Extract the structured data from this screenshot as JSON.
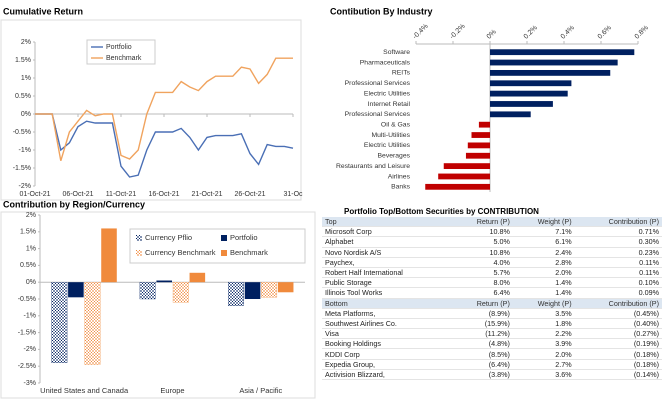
{
  "chart_data": [
    {
      "type": "line",
      "title": "Cumulative Return",
      "x": [
        1,
        2,
        3,
        4,
        5,
        6,
        7,
        8,
        9,
        10,
        11,
        12,
        13,
        14,
        15,
        16,
        17,
        18,
        19,
        20,
        21,
        22,
        23,
        24,
        25,
        26,
        27,
        28,
        29,
        30,
        31
      ],
      "xlim": [
        1,
        31
      ],
      "xticks": [
        {
          "value": 1,
          "label": "01-Oct-21"
        },
        {
          "value": 6,
          "label": "06-Oct-21"
        },
        {
          "value": 11,
          "label": "11-Oct-21"
        },
        {
          "value": 16,
          "label": "16-Oct-21"
        },
        {
          "value": 21,
          "label": "21-Oct-21"
        },
        {
          "value": 26,
          "label": "26-Oct-21"
        },
        {
          "value": 31,
          "label": "31-Oc"
        }
      ],
      "ylim": [
        -2,
        2
      ],
      "yticks": [
        {
          "value": 2,
          "label": "2%"
        },
        {
          "value": 1.5,
          "label": "1.5%"
        },
        {
          "value": 1,
          "label": "1%"
        },
        {
          "value": 0.5,
          "label": "0.5%"
        },
        {
          "value": 0,
          "label": "0%"
        },
        {
          "value": -0.5,
          "label": "-0.5%"
        },
        {
          "value": -1,
          "label": "-1%"
        },
        {
          "value": -1.5,
          "label": "-1.5%"
        },
        {
          "value": -2,
          "label": "-2%"
        }
      ],
      "legend": "upper-left",
      "series": [
        {
          "name": "Portfolio",
          "color": "#4a6fb5",
          "values": [
            0,
            0,
            0,
            -1.0,
            -0.8,
            -0.35,
            -0.2,
            -0.25,
            -0.25,
            -0.25,
            -1.45,
            -1.75,
            -1.7,
            -1.0,
            -0.5,
            -0.5,
            -0.5,
            -0.4,
            -0.65,
            -1.0,
            -0.65,
            -0.6,
            -0.6,
            -0.6,
            -0.55,
            -1.1,
            -1.4,
            -0.85,
            -0.9,
            -0.9,
            -0.95
          ]
        },
        {
          "name": "Benchmark",
          "color": "#f0a35e",
          "values": [
            0,
            0,
            0,
            -1.3,
            -0.5,
            -0.2,
            0.1,
            -0.05,
            0,
            0,
            -1.15,
            -1.25,
            -1.0,
            0,
            0.6,
            0.6,
            0.6,
            0.9,
            0.75,
            0.65,
            0.9,
            1.05,
            1.05,
            1.05,
            1.3,
            1.25,
            0.85,
            1.1,
            1.55,
            1.55,
            1.55
          ]
        }
      ]
    },
    {
      "type": "barh",
      "title": "Contibution By Industry",
      "categories": [
        "Software",
        "Pharmaceuticals",
        "REITs",
        "Professional Services",
        "Electric Utilities",
        "Internet Retail",
        "Professional Services",
        "Oil & Gas",
        "Multi-Utilities",
        "Electric Utilities",
        "Beverages",
        "Restaurants and Leisure",
        "Airlines",
        "Banks"
      ],
      "values": [
        0.78,
        0.69,
        0.65,
        0.44,
        0.42,
        0.34,
        0.22,
        -0.06,
        -0.1,
        -0.12,
        -0.13,
        -0.25,
        -0.28,
        -0.35
      ],
      "color": "#002060",
      "negative_color": "#c00000",
      "xlim": [
        -0.4,
        0.8
      ],
      "xticks": [
        {
          "value": -0.4,
          "label": "-0.4%"
        },
        {
          "value": -0.2,
          "label": "-0.2%"
        },
        {
          "value": 0,
          "label": "0%"
        },
        {
          "value": 0.2,
          "label": "0.2%"
        },
        {
          "value": 0.4,
          "label": "0.4%"
        },
        {
          "value": 0.6,
          "label": "0.6%"
        },
        {
          "value": 0.8,
          "label": "0.8%"
        }
      ]
    },
    {
      "type": "bar",
      "title": "Contribution by Region/Currency",
      "categories": [
        "United States and Canada",
        "Europe",
        "Asia / Pacific"
      ],
      "ylim": [
        -3,
        2
      ],
      "yticks": [
        {
          "value": 2,
          "label": "2%"
        },
        {
          "value": 1.5,
          "label": "1.5%"
        },
        {
          "value": 1,
          "label": "1%"
        },
        {
          "value": 0.5,
          "label": "0.5%"
        },
        {
          "value": 0,
          "label": "0%"
        },
        {
          "value": -0.5,
          "label": "-0.5%"
        },
        {
          "value": -1,
          "label": "-1%"
        },
        {
          "value": -1.5,
          "label": "-1.5%"
        },
        {
          "value": -2,
          "label": "-2%"
        },
        {
          "value": -2.5,
          "label": "-2.5%"
        },
        {
          "value": -3,
          "label": "-3%"
        }
      ],
      "legend": "upper-right",
      "series": [
        {
          "name": "Currency Pflio",
          "color": "#002060",
          "hatched": true,
          "values": [
            -2.4,
            -0.5,
            -0.7
          ]
        },
        {
          "name": "Portfolio",
          "color": "#002060",
          "values": [
            -0.45,
            0.05,
            -0.5
          ]
        },
        {
          "name": "Currency Benchmark",
          "color": "#f08a3c",
          "hatched": true,
          "values": [
            -2.45,
            -0.6,
            -0.45
          ]
        },
        {
          "name": "Benchmark",
          "color": "#f08a3c",
          "values": [
            1.6,
            0.28,
            -0.3
          ]
        }
      ]
    }
  ],
  "table": {
    "title": "Portfolio Top/Bottom Securities by CONTRIBUTION",
    "top_header": [
      "Top",
      "Return (P)",
      "Weight (P)",
      "Contribution (P)"
    ],
    "top_rows": [
      [
        "Microsoft Corp",
        "10.8%",
        "7.1%",
        "0.71%"
      ],
      [
        "Alphabet",
        "5.0%",
        "6.1%",
        "0.30%"
      ],
      [
        "Novo Nordisk A/S",
        "10.8%",
        "2.4%",
        "0.23%"
      ],
      [
        "Paychex,",
        "4.0%",
        "2.8%",
        "0.11%"
      ],
      [
        "Robert Half International",
        "5.7%",
        "2.0%",
        "0.11%"
      ],
      [
        "Public Storage",
        "8.0%",
        "1.4%",
        "0.10%"
      ],
      [
        "Illinois Tool Works",
        "6.4%",
        "1.4%",
        "0.09%"
      ]
    ],
    "bottom_header": [
      "Bottom",
      "Return (P)",
      "Weight (P)",
      "Contribution (P)"
    ],
    "bottom_rows": [
      [
        "Meta Platforms,",
        "(8.9%)",
        "3.5%",
        "(0.45%)"
      ],
      [
        "Southwest Airlines Co.",
        "(15.9%)",
        "1.8%",
        "(0.40%)"
      ],
      [
        "Visa",
        "(11.2%)",
        "2.2%",
        "(0.27%)"
      ],
      [
        "Booking Holdings",
        "(4.8%)",
        "3.9%",
        "(0.19%)"
      ],
      [
        "KDDI Corp",
        "(8.5%)",
        "2.0%",
        "(0.18%)"
      ],
      [
        "Expedia Group,",
        "(6.4%)",
        "2.7%",
        "(0.18%)"
      ],
      [
        "Activision Blizzard,",
        "(3.8%)",
        "3.6%",
        "(0.14%)"
      ]
    ]
  }
}
